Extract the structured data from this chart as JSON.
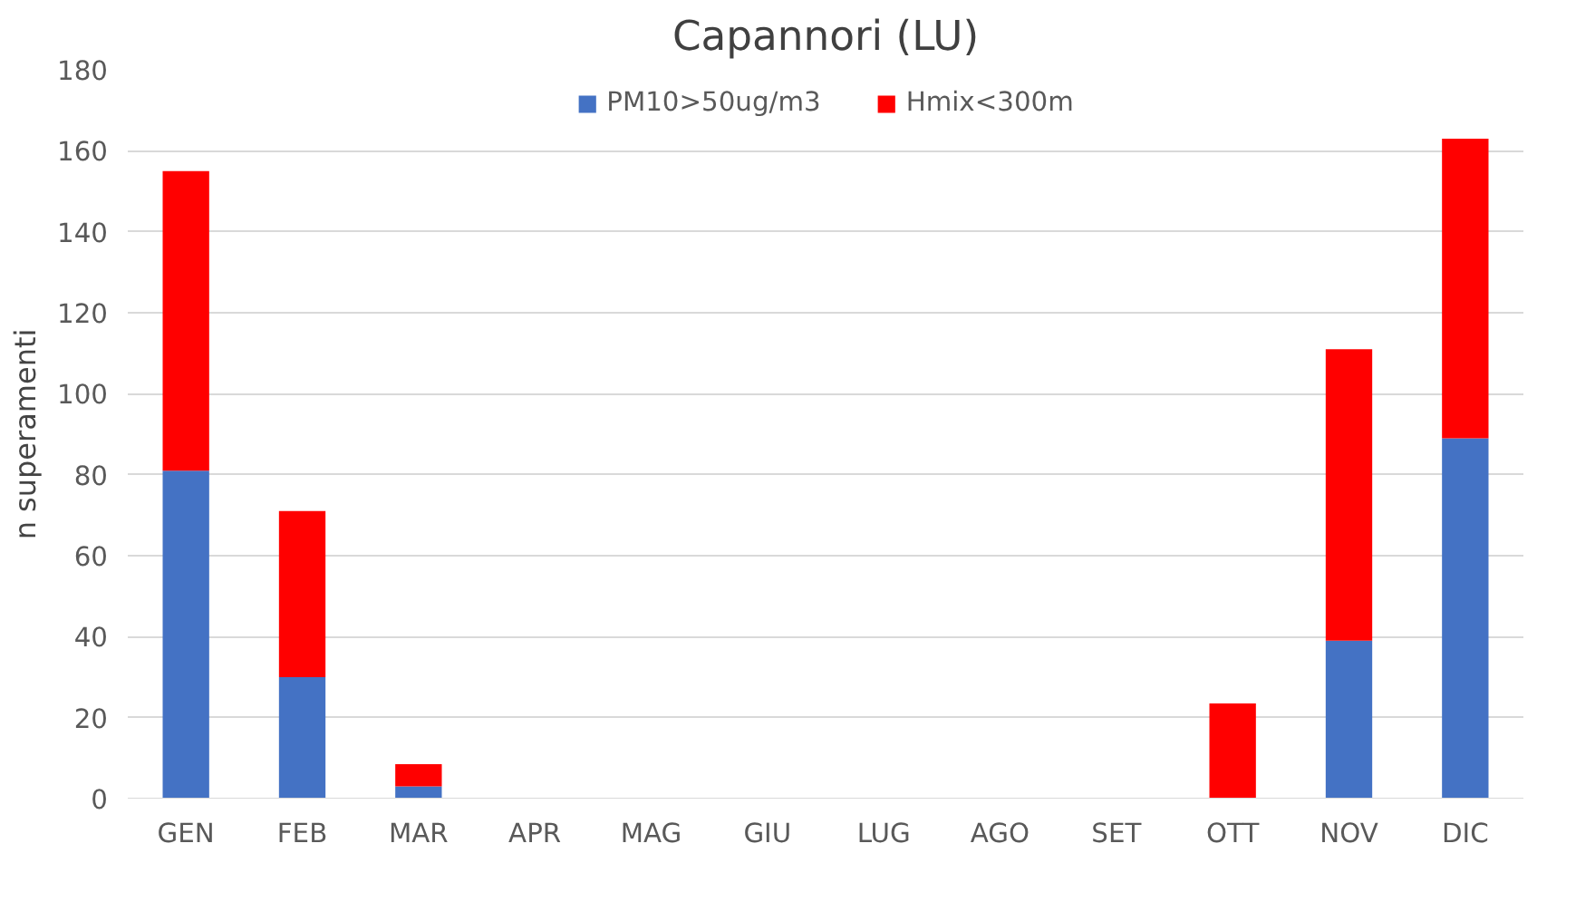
{
  "chart_data": {
    "type": "bar",
    "title": "Capannori (LU)",
    "ylabel": "n superamenti",
    "stacked": true,
    "categories": [
      "GEN",
      "FEB",
      "MAR",
      "APR",
      "MAG",
      "GIU",
      "LUG",
      "AGO",
      "SET",
      "OTT",
      "NOV",
      "DIC"
    ],
    "series": [
      {
        "name": "PM10>50ug/m3",
        "color": "#4472c4",
        "values": [
          81,
          30,
          3,
          0,
          0,
          0,
          0,
          0,
          0,
          0,
          39,
          89
        ]
      },
      {
        "name": "Hmix<300m",
        "color": "#ff0000",
        "values": [
          74,
          41,
          5.5,
          0,
          0,
          0,
          0,
          0,
          0,
          23.5,
          72,
          74
        ]
      }
    ],
    "ylim": [
      0,
      180
    ],
    "yticks": [
      0,
      20,
      40,
      60,
      80,
      100,
      120,
      140,
      160,
      180
    ],
    "grid": "y",
    "legend": "top"
  }
}
